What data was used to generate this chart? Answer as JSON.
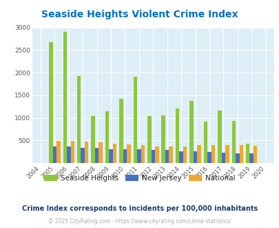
{
  "title": "Seaside Heights Violent Crime Index",
  "years": [
    2004,
    2005,
    2006,
    2007,
    2008,
    2009,
    2010,
    2011,
    2012,
    2013,
    2014,
    2015,
    2016,
    2017,
    2018,
    2019,
    2020
  ],
  "seaside_heights": [
    0,
    2670,
    2900,
    1920,
    1040,
    1140,
    1420,
    1910,
    1040,
    1060,
    1210,
    1370,
    920,
    1160,
    930,
    420,
    0
  ],
  "new_jersey": [
    0,
    360,
    360,
    330,
    330,
    310,
    310,
    305,
    285,
    285,
    255,
    255,
    250,
    235,
    215,
    210,
    0
  ],
  "national": [
    0,
    490,
    490,
    480,
    460,
    430,
    410,
    390,
    370,
    370,
    365,
    390,
    390,
    390,
    390,
    380,
    0
  ],
  "color_seaside": "#8dc63f",
  "color_nj": "#4472c4",
  "color_national": "#f0a830",
  "bg_color": "#ddeef6",
  "title_color": "#0070c0",
  "label_color": "#222222",
  "subtitle_color": "#1a3c6e",
  "footer_color": "#aaaaaa",
  "url_color": "#4472c4",
  "subtitle": "Crime Index corresponds to incidents per 100,000 inhabitants",
  "footer_prefix": "© 2025 CityRating.com - ",
  "footer_url": "https://www.cityrating.com/crime-statistics/",
  "ylim": [
    0,
    3000
  ],
  "yticks": [
    0,
    500,
    1000,
    1500,
    2000,
    2500,
    3000
  ],
  "bar_width": 0.27
}
